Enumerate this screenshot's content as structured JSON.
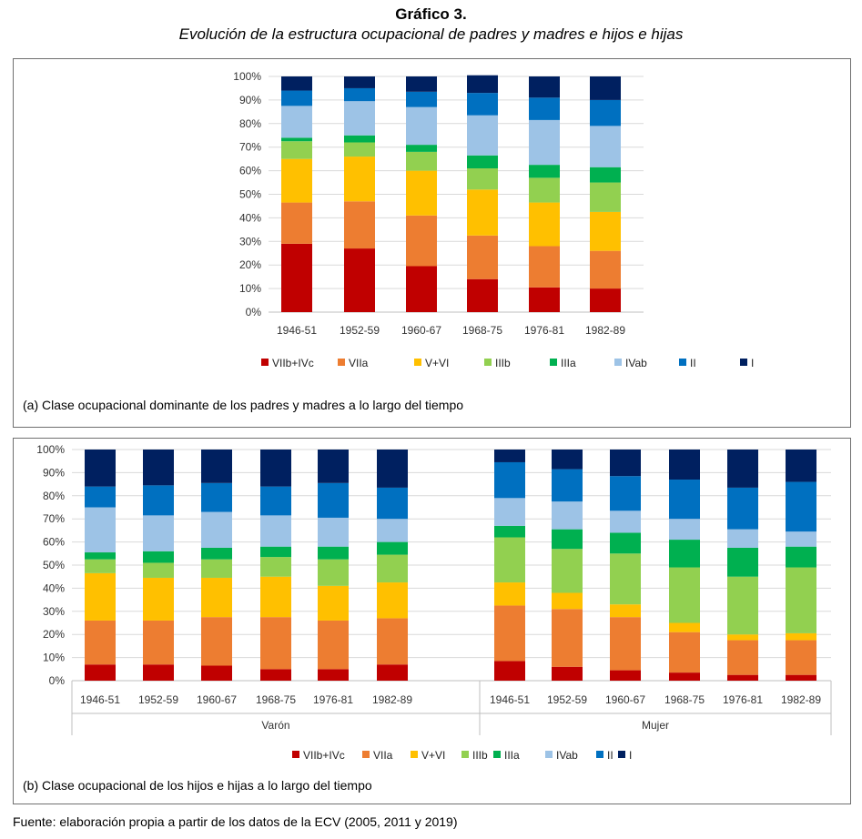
{
  "header": {
    "title": "Gráfico 3.",
    "subtitle": "Evolución de la estructura ocupacional de padres y madres e hijos e hijas"
  },
  "source": "Fuente: elaboración propia a partir de los datos de la ECV (2005, 2011 y 2019)",
  "colors": {
    "VIIb+IVc": "#c00000",
    "VIIa": "#ed7d31",
    "V+VI": "#ffc000",
    "IIIb": "#92d050",
    "IIIa": "#00b050",
    "IVab": "#9dc3e6",
    "II": "#0070c0",
    "I": "#002060"
  },
  "chart_data": [
    {
      "type": "bar",
      "stacked": true,
      "caption": "(a) Clase ocupacional dominante de los padres y madres a lo largo del tiempo",
      "categories": [
        "1946-51",
        "1952-59",
        "1960-67",
        "1968-75",
        "1976-81",
        "1982-89"
      ],
      "y_ticks": [
        "0%",
        "10%",
        "20%",
        "30%",
        "40%",
        "50%",
        "60%",
        "70%",
        "80%",
        "90%",
        "100%"
      ],
      "ylim": [
        0,
        100
      ],
      "legend_position": "bottom",
      "series": [
        {
          "name": "VIIb+IVc",
          "values": [
            29,
            27,
            19.5,
            14,
            10.5,
            10
          ]
        },
        {
          "name": "VIIa",
          "values": [
            17.5,
            20,
            21.5,
            18.5,
            17.5,
            16
          ]
        },
        {
          "name": "V+VI",
          "values": [
            18.5,
            19,
            19,
            19.5,
            18.5,
            16.5
          ]
        },
        {
          "name": "IIIb",
          "values": [
            7.5,
            6,
            8,
            9,
            10.5,
            12.5
          ]
        },
        {
          "name": "IIIa",
          "values": [
            1.5,
            3,
            3,
            5.5,
            5.5,
            6.5
          ]
        },
        {
          "name": "IVab",
          "values": [
            13.5,
            14.5,
            16,
            17,
            19,
            17.5
          ]
        },
        {
          "name": "II",
          "values": [
            6.5,
            5.5,
            6.5,
            9.5,
            9.5,
            11
          ]
        },
        {
          "name": "I",
          "values": [
            6,
            5,
            6.5,
            7.5,
            9,
            10
          ]
        }
      ]
    },
    {
      "type": "bar",
      "stacked": true,
      "caption": "(b) Clase ocupacional de los hijos e hijas a lo largo del tiempo",
      "groups": [
        {
          "name": "Varón",
          "categories": [
            "1946-51",
            "1952-59",
            "1960-67",
            "1968-75",
            "1976-81",
            "1982-89"
          ]
        },
        {
          "name": "Mujer",
          "categories": [
            "1946-51",
            "1952-59",
            "1960-67",
            "1968-75",
            "1976-81",
            "1982-89"
          ]
        }
      ],
      "y_ticks": [
        "0%",
        "10%",
        "20%",
        "30%",
        "40%",
        "50%",
        "60%",
        "70%",
        "80%",
        "90%",
        "100%"
      ],
      "ylim": [
        0,
        100
      ],
      "legend_position": "bottom",
      "series": [
        {
          "name": "VIIb+IVc",
          "values": [
            7,
            7,
            6.5,
            5,
            5,
            7,
            8.5,
            6,
            4.5,
            3.5,
            2.5,
            2.5
          ]
        },
        {
          "name": "VIIa",
          "values": [
            19,
            19,
            21,
            22.5,
            21,
            20,
            24,
            25,
            23,
            17.5,
            15,
            15
          ]
        },
        {
          "name": "V+VI",
          "values": [
            20.5,
            18.5,
            17,
            17.5,
            15,
            15.5,
            10,
            7,
            5.5,
            4,
            2.5,
            3
          ]
        },
        {
          "name": "IIIb",
          "values": [
            6,
            6.5,
            8,
            8.5,
            11.5,
            12,
            19.5,
            19,
            22,
            24,
            25,
            28.5
          ]
        },
        {
          "name": "IIIa",
          "values": [
            3,
            5,
            5,
            4.5,
            5.5,
            5.5,
            5,
            8.5,
            9,
            12,
            12.5,
            9
          ]
        },
        {
          "name": "IVab",
          "values": [
            19.5,
            15.5,
            15.5,
            13.5,
            12.5,
            10,
            12,
            12,
            9.5,
            9,
            8,
            6.5
          ]
        },
        {
          "name": "II",
          "values": [
            9,
            13,
            12.5,
            12.5,
            15,
            13.5,
            15.5,
            14,
            15,
            17,
            18,
            21.5
          ]
        },
        {
          "name": "I",
          "values": [
            16,
            15.5,
            14.5,
            16,
            14.5,
            16.5,
            5.5,
            8.5,
            11.5,
            13,
            16.5,
            14
          ]
        }
      ]
    }
  ]
}
